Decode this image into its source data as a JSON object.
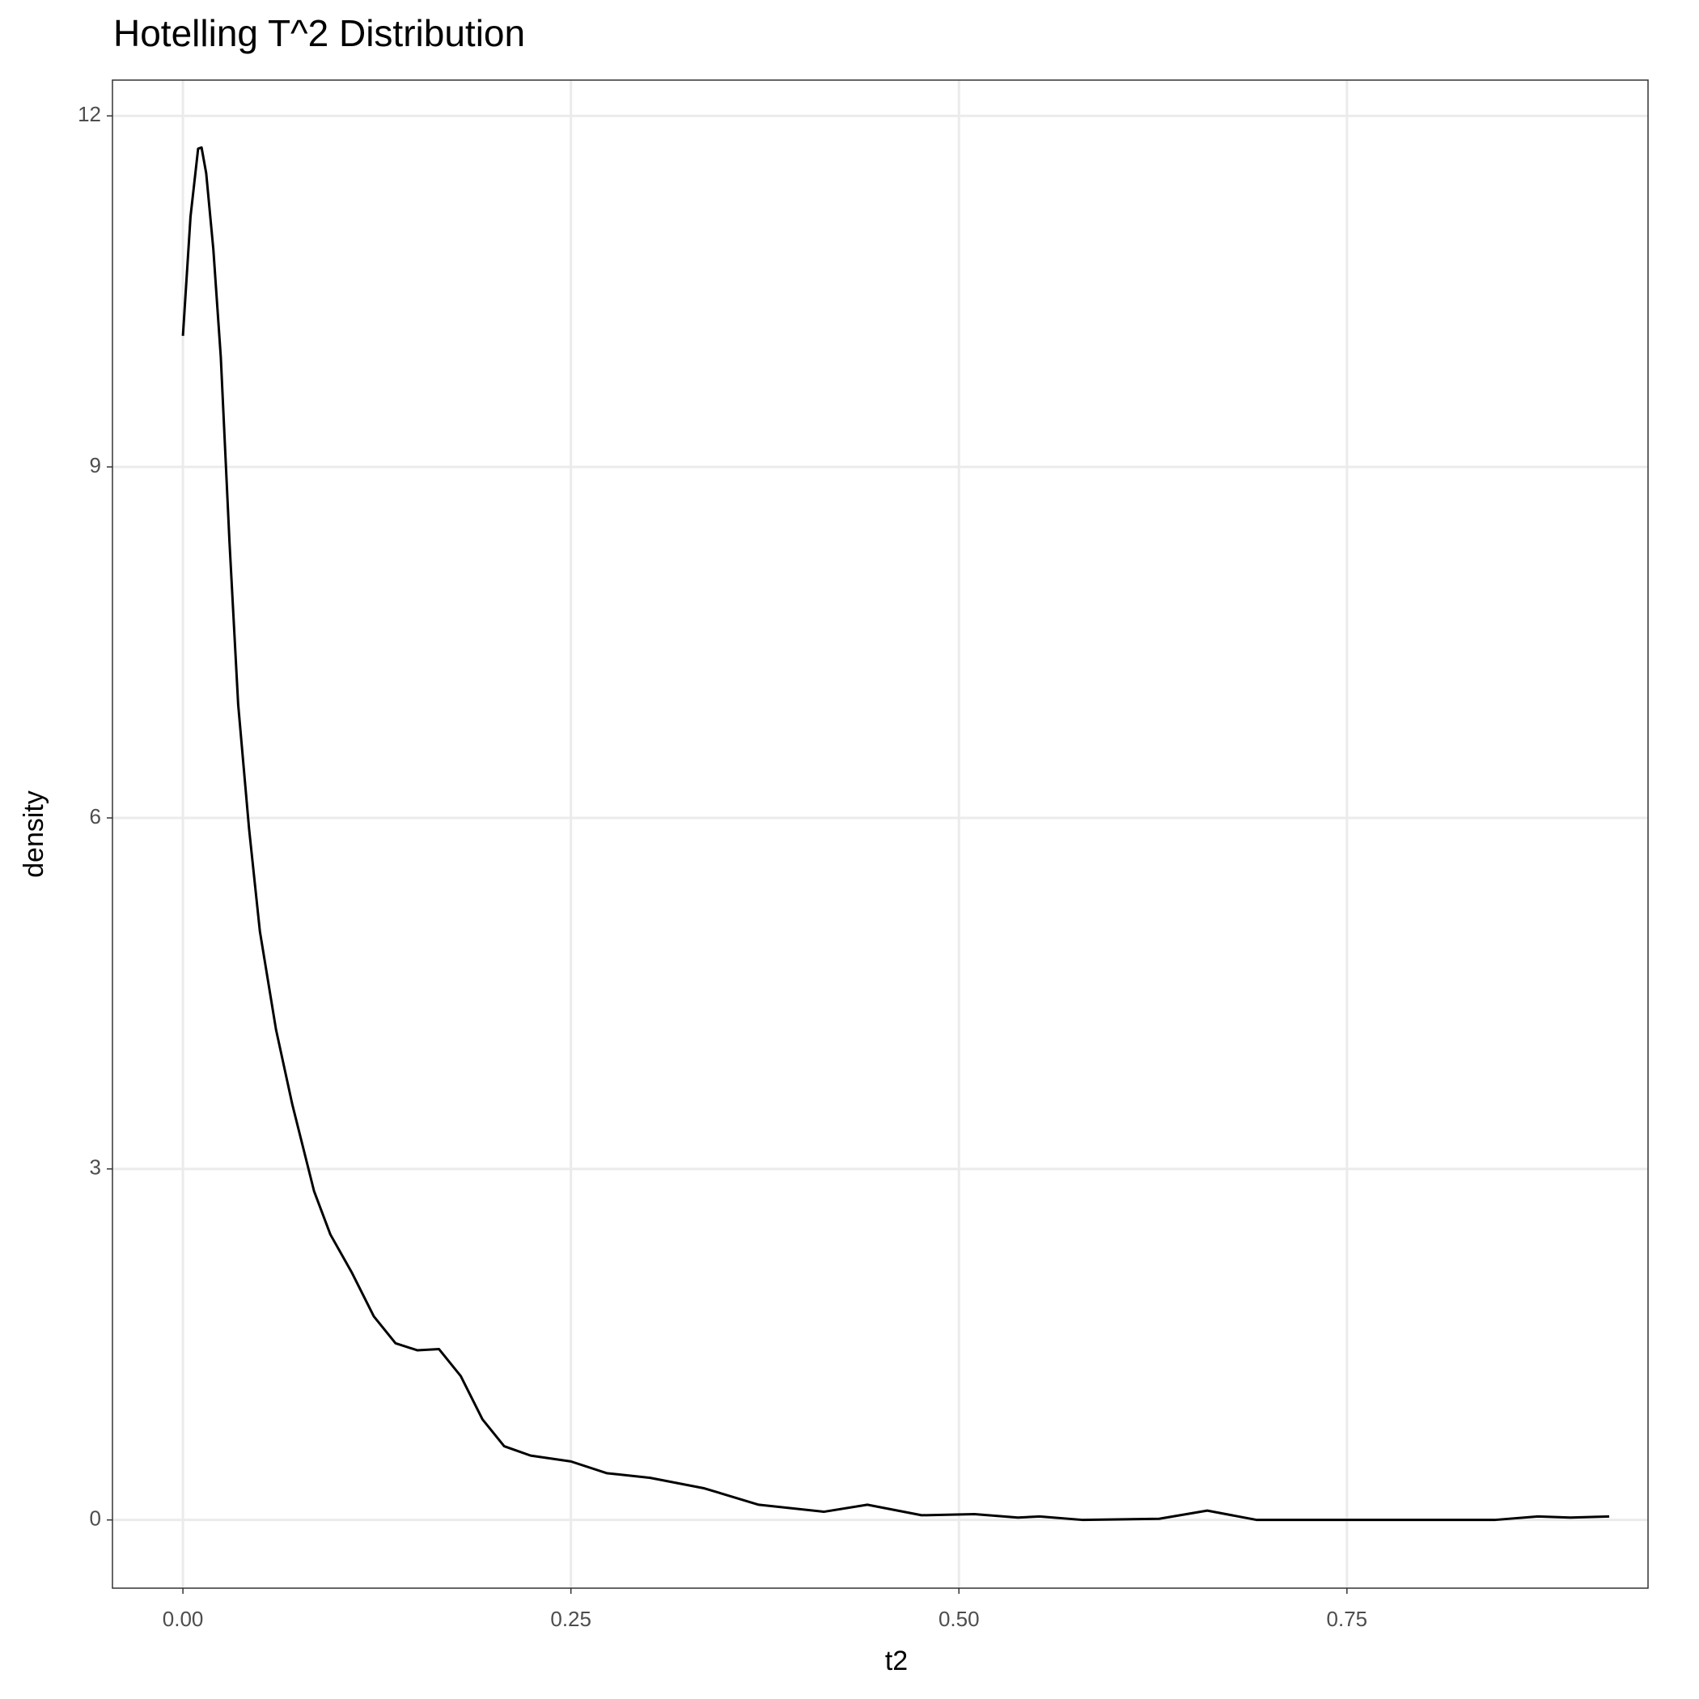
{
  "chart_data": {
    "type": "line",
    "title": "Hotelling T^2 Distribution",
    "x_label": "t2",
    "y_label": "density",
    "x": [
      0,
      0.0049,
      0.0098,
      0.012,
      0.015,
      0.0196,
      0.0244,
      0.03,
      0.0356,
      0.0426,
      0.0496,
      0.06,
      0.0705,
      0.0845,
      0.095,
      0.109,
      0.123,
      0.137,
      0.151,
      0.165,
      0.179,
      0.193,
      0.207,
      0.224,
      0.25,
      0.273,
      0.301,
      0.336,
      0.371,
      0.413,
      0.441,
      0.476,
      0.51,
      0.538,
      0.552,
      0.58,
      0.629,
      0.66,
      0.692,
      0.845,
      0.873,
      0.894,
      0.919
    ],
    "series": [
      {
        "name": "density",
        "color": "#000000",
        "values": [
          10.12,
          11.14,
          11.72,
          11.73,
          11.51,
          10.86,
          9.94,
          8.36,
          6.97,
          5.91,
          5.03,
          4.19,
          3.55,
          2.81,
          2.44,
          2.11,
          1.74,
          1.51,
          1.45,
          1.46,
          1.23,
          0.86,
          0.63,
          0.55,
          0.5,
          0.4,
          0.36,
          0.27,
          0.13,
          0.07,
          0.13,
          0.04,
          0.05,
          0.02,
          0.03,
          0,
          0.01,
          0.08,
          0,
          0,
          0.03,
          0.02,
          0.03
        ]
      }
    ],
    "xlim": [
      -0.0454,
      0.944
    ],
    "ylim": [
      -0.583,
      12.306
    ],
    "xticks": [
      {
        "value": 0,
        "label": "0.00"
      },
      {
        "value": 0.25,
        "label": "0.25"
      },
      {
        "value": 0.5,
        "label": "0.50"
      },
      {
        "value": 0.75,
        "label": "0.75"
      }
    ],
    "yticks": [
      0,
      3,
      6,
      9,
      12
    ],
    "grid": true
  }
}
